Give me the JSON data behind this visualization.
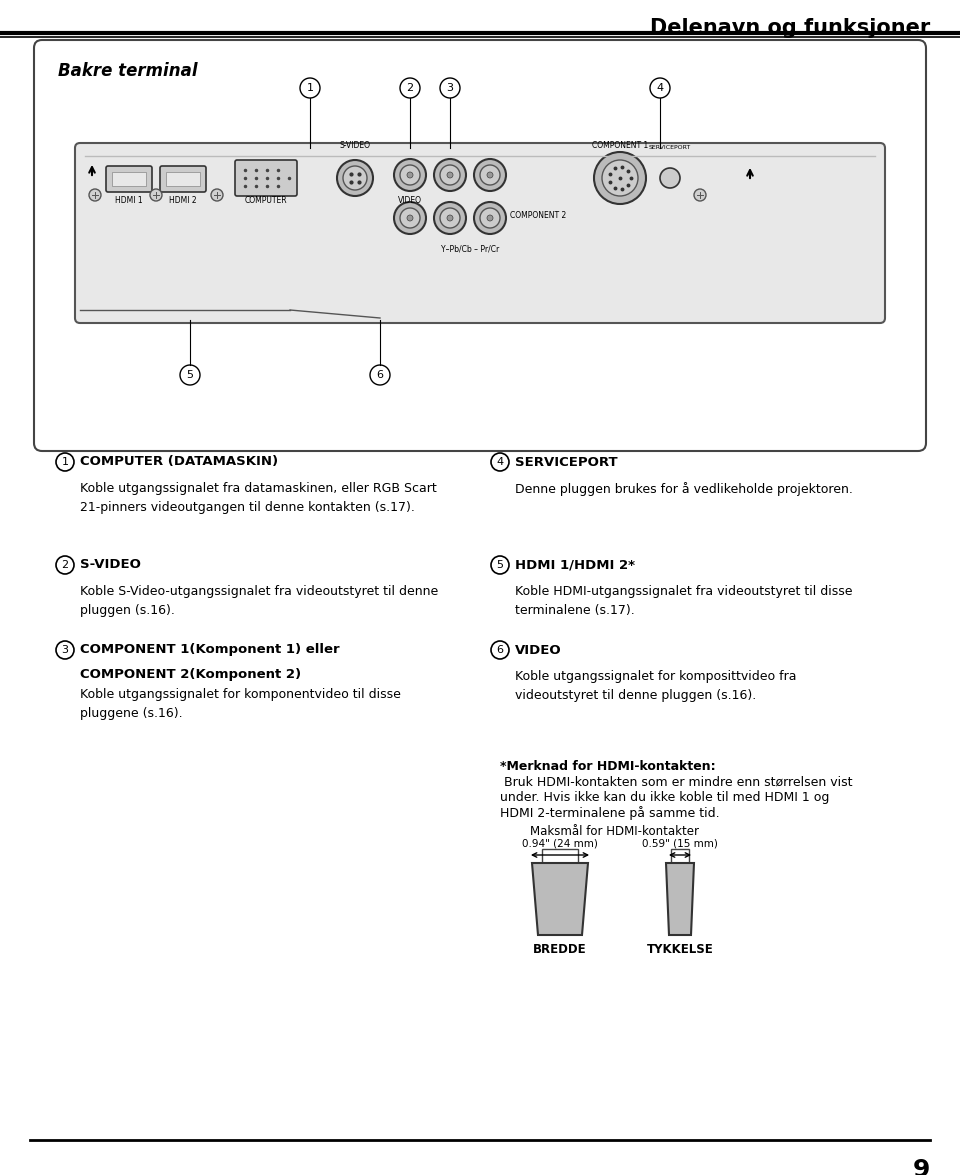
{
  "page_title": "Delenavn og funksjoner",
  "page_number": "9",
  "box_title": "Bakre terminal",
  "background_color": "#ffffff",
  "sections_left": [
    {
      "number": "1",
      "heading": "COMPUTER (DATAMASKIN)",
      "body": "Koble utgangssignalet fra datamaskinen, eller RGB Scart\n21-pinners videoutgangen til denne kontakten (s.17)."
    },
    {
      "number": "2",
      "heading": "S-VIDEO",
      "body": "Koble S-Video-utgangssignalet fra videoutstyret til denne\npluggen (s.16)."
    },
    {
      "number": "3",
      "heading_line1": "COMPONENT 1(Komponent 1) eller",
      "heading_line2": "COMPONENT 2(Komponent 2)",
      "body": "Koble utgangssignalet for komponentvideo til disse\npluggene (s.16)."
    }
  ],
  "sections_right": [
    {
      "number": "4",
      "heading": "SERVICEPORT",
      "body": "Denne pluggen brukes for å vedlikeholde projektoren."
    },
    {
      "number": "5",
      "heading": "HDMI 1/HDMI 2*",
      "body": "Koble HDMI-utgangssignalet fra videoutstyret til disse\nterminalene (s.17)."
    },
    {
      "number": "6",
      "heading": "VIDEO",
      "body": "Koble utgangssignalet for komposittvideo fra\nvideoutstyret til denne pluggen (s.16)."
    }
  ],
  "note_bold": "*Merknad for HDMI-kontakten:",
  "note_line1": " Bruk HDMI-kontakten som er mindre enn størrelsen vist",
  "note_line2": "under. Hvis ikke kan du ikke koble til med HDMI 1 og",
  "note_line3": "HDMI 2-terminalene på samme tid.",
  "diagram_title": "Maksmål for HDMI-kontakter",
  "label_left": "0.94\" (24 mm)",
  "label_right": "0.59\" (15 mm)",
  "caption_left": "BREDDE",
  "caption_right": "TYKKELSE"
}
